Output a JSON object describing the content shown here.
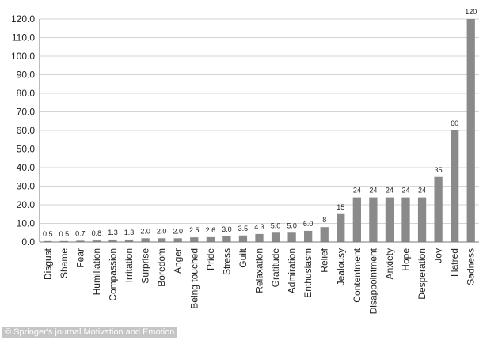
{
  "chart_data": {
    "type": "bar",
    "title": "",
    "xlabel": "",
    "ylabel": "",
    "ylim": [
      0,
      120
    ],
    "y_ticks": [
      "0.0",
      "10.0",
      "20.0",
      "30.0",
      "40.0",
      "50.0",
      "60.0",
      "70.0",
      "80.0",
      "90.0",
      "100.0",
      "110.0",
      "120.0"
    ],
    "grid": true,
    "categories": [
      "Disgust",
      "Shame",
      "Fear",
      "Humiliation",
      "Compassion",
      "Irritation",
      "Surprise",
      "Boredom",
      "Anger",
      "Being touched",
      "Pride",
      "Stress",
      "Guilt",
      "Relaxation",
      "Gratitude",
      "Admiration",
      "Enthusiasm",
      "Relief",
      "Jealousy",
      "Contentment",
      "Disappointment",
      "Anxiety",
      "Hope",
      "Desperation",
      "Joy",
      "Hatred",
      "Sadness"
    ],
    "values": [
      0.5,
      0.5,
      0.7,
      0.8,
      1.3,
      1.3,
      2.0,
      2.0,
      2.0,
      2.5,
      2.6,
      3.0,
      3.5,
      4.3,
      5.0,
      5.0,
      6.0,
      8,
      15,
      24,
      24,
      24,
      24,
      24,
      35,
      60,
      120
    ],
    "value_labels": [
      "0.5",
      "0.5",
      "0.7",
      "0.8",
      "1.3",
      "1.3",
      "2.0",
      "2.0",
      "2.0",
      "2.5",
      "2.6",
      "3.0",
      "3.5",
      "4.3",
      "5.0",
      "5.0",
      "6.0",
      "8",
      "15",
      "24",
      "24",
      "24",
      "24",
      "24",
      "35",
      "60",
      "120"
    ],
    "bar_color": "#8a8a8a"
  },
  "watermark": "© Springer's journal Motivation and Emotion"
}
